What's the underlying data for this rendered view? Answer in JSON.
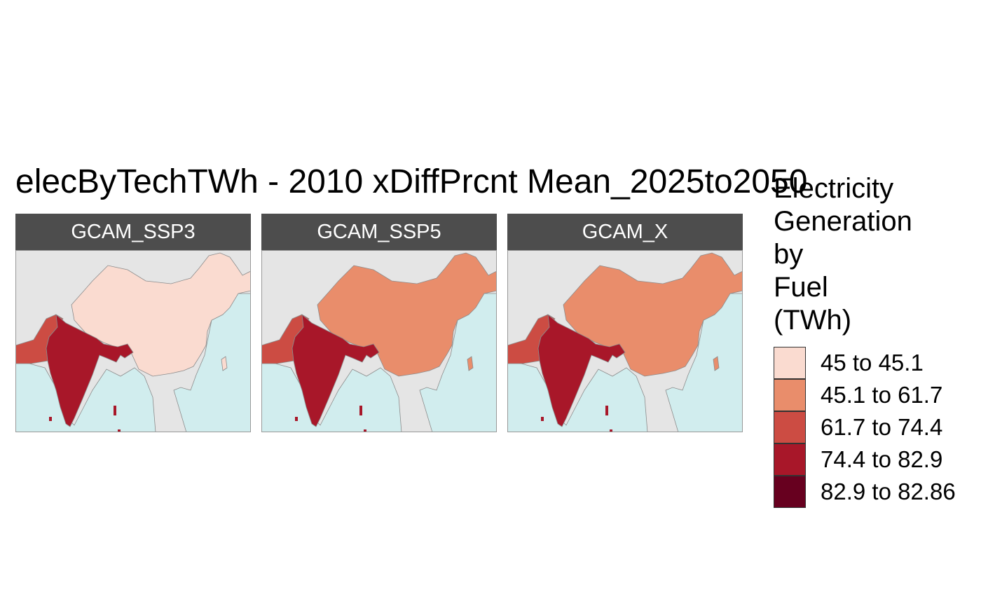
{
  "title": "elecByTechTWh - 2010 xDiffPrcnt Mean_2025to2050",
  "legend": {
    "title_lines": [
      "Electricity",
      "Generation",
      "by",
      "Fuel",
      "(TWh)"
    ],
    "entries": [
      {
        "label": "45 to 45.1",
        "color": "#fadbd0"
      },
      {
        "label": "45.1 to 61.7",
        "color": "#e98d6b"
      },
      {
        "label": "61.7 to 74.4",
        "color": "#cc4c43"
      },
      {
        "label": "74.4 to 82.9",
        "color": "#a81729"
      },
      {
        "label": "82.9 to 82.86",
        "color": "#67001f"
      }
    ]
  },
  "colors": {
    "ocean": "#d1edee",
    "land_other": "#e5e5e5",
    "border": "#8c8c8c",
    "strip": "#4d4d4d"
  },
  "panels": [
    {
      "label": "GCAM_SSP3",
      "china_class": 0,
      "india_class": 3,
      "pakistan_class": 2
    },
    {
      "label": "GCAM_SSP5",
      "china_class": 1,
      "india_class": 3,
      "pakistan_class": 2
    },
    {
      "label": "GCAM_X",
      "china_class": 1,
      "india_class": 3,
      "pakistan_class": 2
    }
  ]
}
